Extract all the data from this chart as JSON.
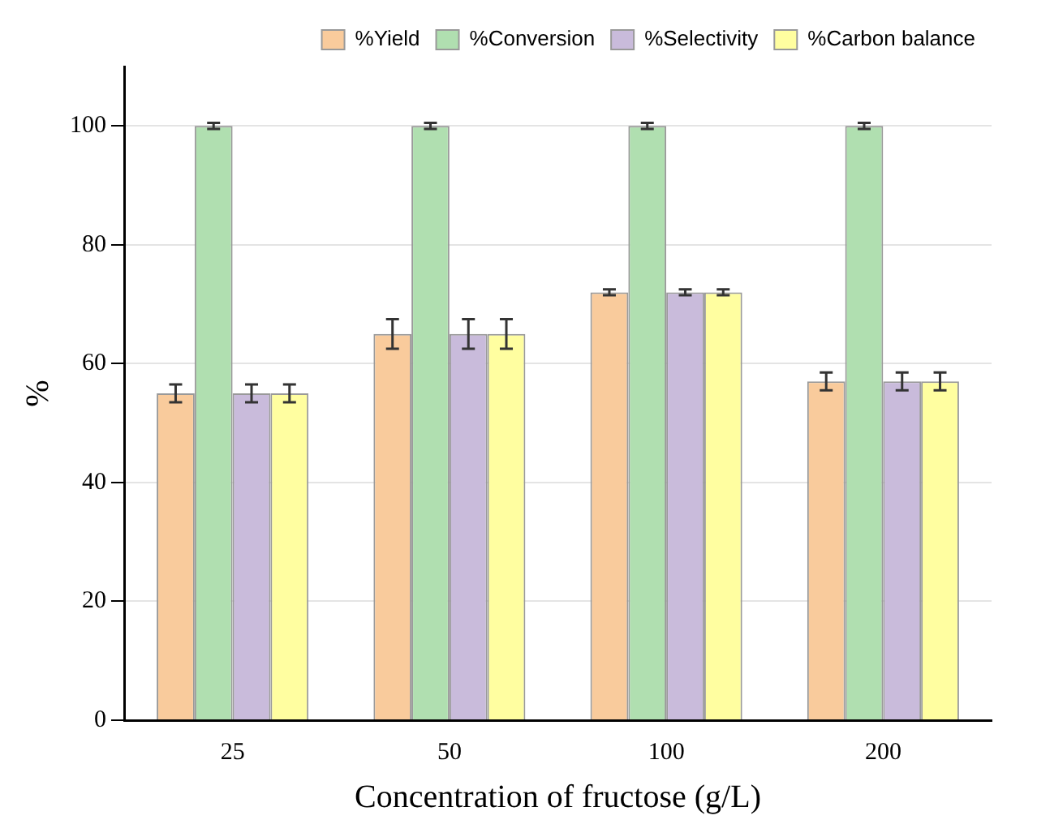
{
  "chart_data": {
    "type": "bar",
    "xlabel": "Concentration of fructose (g/L)",
    "ylabel": "%",
    "categories": [
      "25",
      "50",
      "100",
      "200"
    ],
    "series": [
      {
        "name": "%Yield",
        "color": "#f9cb9c",
        "values": [
          55,
          65,
          72,
          57
        ],
        "errors": [
          1.5,
          2.5,
          0.5,
          1.5
        ]
      },
      {
        "name": "%Conversion",
        "color": "#b0dfb0",
        "values": [
          100,
          100,
          100,
          100
        ],
        "errors": [
          0.5,
          0.5,
          0.5,
          0.5
        ]
      },
      {
        "name": "%Selectivity",
        "color": "#c9bbdb",
        "values": [
          55,
          65,
          72,
          57
        ],
        "errors": [
          1.5,
          2.5,
          0.5,
          1.5
        ]
      },
      {
        "name": "%Carbon balance",
        "color": "#fffea0",
        "values": [
          55,
          65,
          72,
          57
        ],
        "errors": [
          1.5,
          2.5,
          0.5,
          1.5
        ]
      }
    ],
    "ylim": [
      0,
      110
    ],
    "yticks": [
      0,
      20,
      40,
      60,
      80,
      100
    ],
    "grid": "y",
    "legend": "top right"
  }
}
